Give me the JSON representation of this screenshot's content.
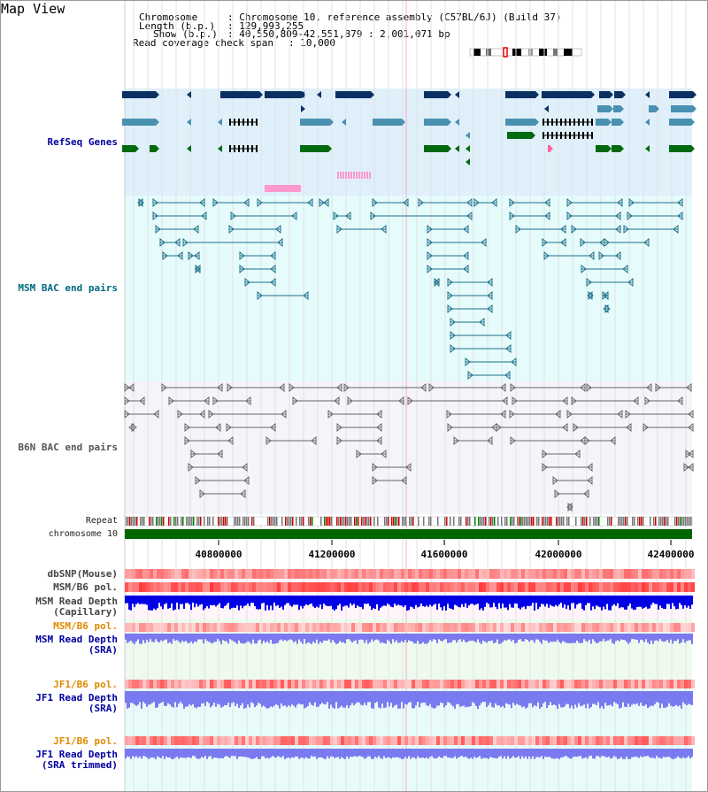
{
  "page": {
    "title": "Map View"
  },
  "header": {
    "chromosome_key": "Chromosome",
    "chromosome_val": ": Chromosome 10, reference assembly (C57BL/6J) (Build 37)",
    "length_key": "Length (b.p.)",
    "length_val": ": 129,993,255",
    "show_key": "Show (b.p.)",
    "show_val": ": 40,550,809-42,551,879 : 2,001,071 bp",
    "coverage_key": "Read coverage check span",
    "coverage_val": ": 10,000"
  },
  "tracks": {
    "refseq": {
      "label": "RefSeq Genes"
    },
    "msm_bac": {
      "label": "MSM BAC end pairs"
    },
    "b6n_bac": {
      "label": "B6N BAC end pairs"
    },
    "repeat": {
      "label": "Repeat"
    },
    "chromosome": {
      "label": "chromosome 10"
    },
    "dbsnp": {
      "label": "dbSNP(Mouse)"
    },
    "msm_b6_pol_1": {
      "label": "MSM/B6 pol."
    },
    "msm_depth_cap": {
      "line1": "MSM Read Depth",
      "line2": "(Capillary)"
    },
    "msm_b6_pol_2": {
      "label": "MSM/B6 pol."
    },
    "msm_depth_sra": {
      "line1": "MSM Read Depth",
      "line2": "(SRA)"
    },
    "jf1_b6_pol_1": {
      "label": "JF1/B6 pol."
    },
    "jf1_depth_sra": {
      "line1": "JF1 Read Depth",
      "line2": "(SRA)"
    },
    "jf1_b6_pol_2": {
      "label": "JF1/B6 pol."
    },
    "jf1_depth_trim": {
      "line1": "JF1 Read Depth",
      "line2": "(SRA trimmed)"
    }
  },
  "axis": {
    "ticks": [
      "40800000",
      "41200000",
      "41600000",
      "42000000",
      "42400000"
    ]
  },
  "colors": {
    "refseq_bg": "#dff0fb",
    "msm_bg": "#e6fbfb",
    "b6n_bg": "#f4f4fb",
    "gene_navy": "#0b3062",
    "gene_teal": "#4a90b0",
    "gene_green": "#006a10",
    "gene_pink": "#ff99cc",
    "msm_line": "#1a6f8a",
    "b6n_line": "#666666",
    "chrom_green": "#006600",
    "depth_blue": "#0000e6",
    "depth_light": "#7a7af0",
    "label_navy": "#0000a0",
    "label_teal": "#006a80",
    "label_orange": "#e08a00",
    "label_gray": "#444444"
  }
}
